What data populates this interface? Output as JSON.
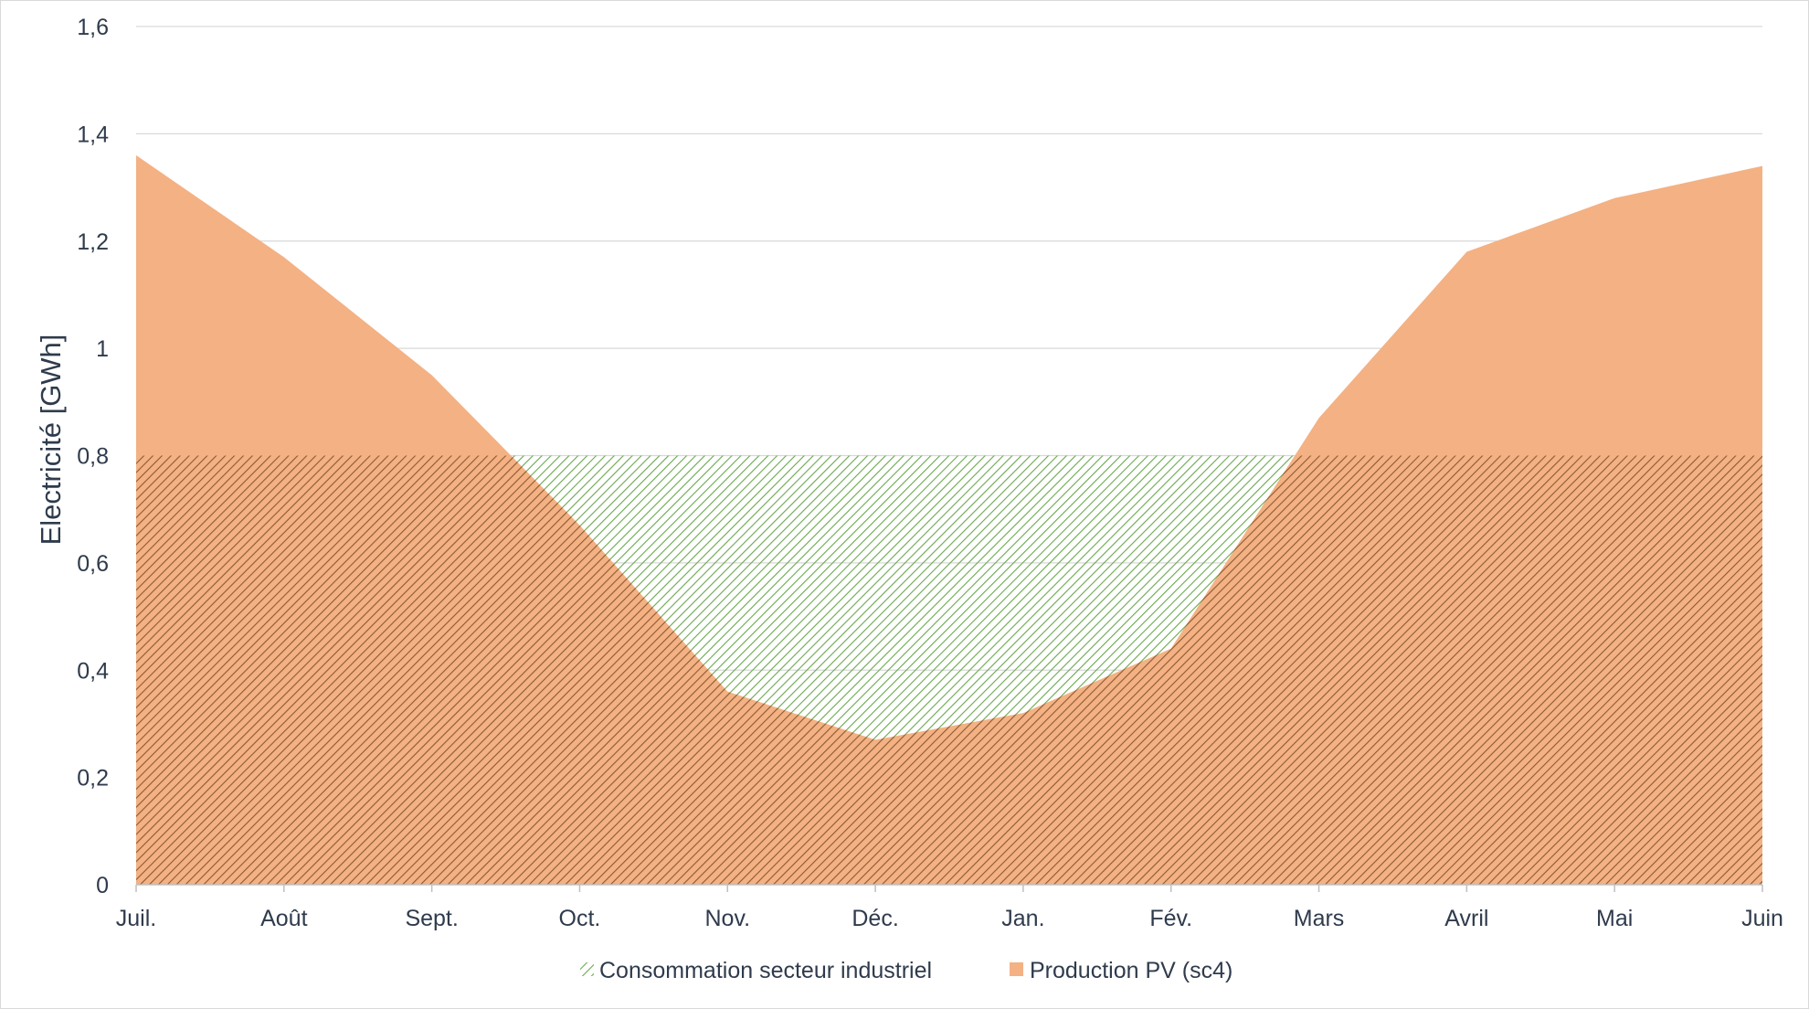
{
  "chart_data": {
    "type": "area",
    "title": "",
    "xlabel": "",
    "ylabel": "Electricité [GWh]",
    "categories": [
      "Juil.",
      "Août",
      "Sept.",
      "Oct.",
      "Nov.",
      "Déc.",
      "Jan.",
      "Fév.",
      "Mars",
      "Avril",
      "Mai",
      "Juin"
    ],
    "ylim": [
      0,
      1.6
    ],
    "y_ticks": [
      "0",
      "0,2",
      "0,4",
      "0,6",
      "0,8",
      "1",
      "1,2",
      "1,4",
      "1,6"
    ],
    "y_tick_values": [
      0,
      0.2,
      0.4,
      0.6,
      0.8,
      1.0,
      1.2,
      1.4,
      1.6
    ],
    "grid": true,
    "legend_position": "bottom",
    "series": [
      {
        "name": "Consommation secteur industriel",
        "style": "hatched",
        "color": "#70ad47",
        "values": [
          0.8,
          0.8,
          0.8,
          0.8,
          0.8,
          0.8,
          0.8,
          0.8,
          0.8,
          0.8,
          0.8,
          0.8
        ]
      },
      {
        "name": "Production PV (sc4)",
        "style": "solid",
        "color": "#f4b183",
        "values": [
          1.36,
          1.17,
          0.95,
          0.67,
          0.36,
          0.27,
          0.32,
          0.44,
          0.87,
          1.18,
          1.28,
          1.34
        ]
      }
    ]
  },
  "colors": {
    "consumption_hatch": "#6aa84f",
    "production_fill": "#f4b183",
    "overlap_hatch": "#8a5a32",
    "gridline": "#d9d9d9",
    "axis": "#bfbfbf",
    "text": "#2f3b4c"
  }
}
